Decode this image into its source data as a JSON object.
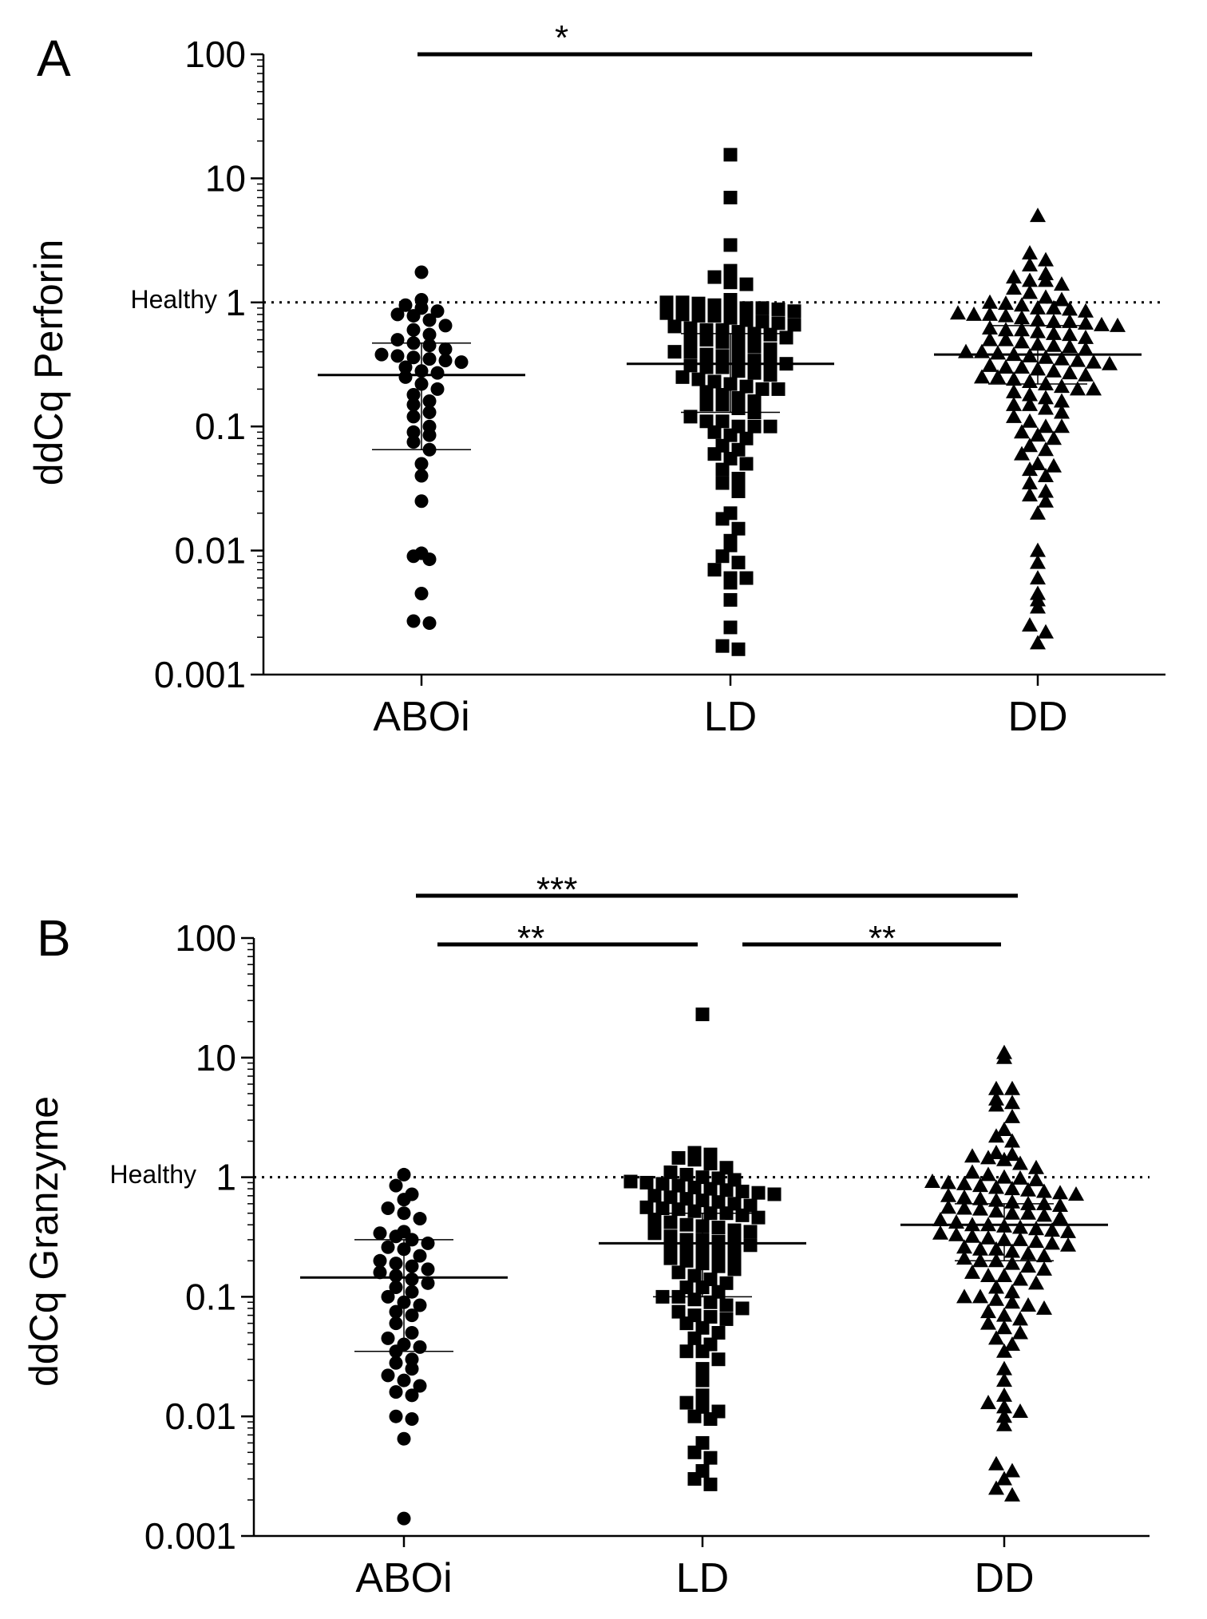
{
  "colors": {
    "ink": "#000000",
    "background": "#ffffff"
  },
  "chart_data": [
    {
      "type": "scatter",
      "panel": "A",
      "ylabel": "ddCq Perforin",
      "yscale": "log",
      "ylim": [
        0.001,
        100
      ],
      "yticks": [
        "0.001",
        "0.01",
        "0.1",
        "1",
        "10",
        "100"
      ],
      "categories": [
        "ABOi",
        "LD",
        "DD"
      ],
      "reference": {
        "label": "Healthy",
        "value": 1
      },
      "significance": [
        {
          "from": "ABOi",
          "to": "DD",
          "label": "*"
        }
      ],
      "series": [
        {
          "name": "ABOi",
          "marker": "circle",
          "median": 0.26,
          "iqr": [
            0.065,
            0.47
          ],
          "values": [
            1.75,
            1.05,
            0.95,
            0.9,
            0.85,
            0.8,
            0.78,
            0.72,
            0.65,
            0.6,
            0.55,
            0.5,
            0.47,
            0.45,
            0.42,
            0.38,
            0.37,
            0.36,
            0.35,
            0.34,
            0.33,
            0.3,
            0.28,
            0.27,
            0.25,
            0.22,
            0.2,
            0.18,
            0.16,
            0.15,
            0.13,
            0.12,
            0.1,
            0.09,
            0.085,
            0.075,
            0.065,
            0.05,
            0.04,
            0.025,
            0.0095,
            0.009,
            0.0085,
            0.0045,
            0.0027,
            0.0026
          ]
        },
        {
          "name": "LD",
          "marker": "square",
          "median": 0.32,
          "iqr": [
            0.13,
            0.56
          ],
          "values": [
            15.5,
            7,
            2.9,
            1.8,
            1.6,
            1.45,
            1.4,
            1.05,
            1.0,
            1.0,
            0.98,
            0.95,
            0.93,
            0.9,
            0.9,
            0.88,
            0.85,
            0.82,
            0.8,
            0.78,
            0.78,
            0.75,
            0.72,
            0.7,
            0.68,
            0.66,
            0.64,
            0.62,
            0.6,
            0.6,
            0.58,
            0.56,
            0.55,
            0.52,
            0.5,
            0.5,
            0.48,
            0.46,
            0.44,
            0.42,
            0.4,
            0.4,
            0.38,
            0.37,
            0.36,
            0.34,
            0.33,
            0.32,
            0.31,
            0.3,
            0.3,
            0.28,
            0.27,
            0.26,
            0.25,
            0.24,
            0.23,
            0.22,
            0.21,
            0.2,
            0.2,
            0.19,
            0.18,
            0.17,
            0.16,
            0.15,
            0.15,
            0.14,
            0.13,
            0.12,
            0.11,
            0.11,
            0.1,
            0.1,
            0.1,
            0.09,
            0.085,
            0.08,
            0.07,
            0.065,
            0.06,
            0.055,
            0.05,
            0.045,
            0.038,
            0.035,
            0.03,
            0.02,
            0.018,
            0.015,
            0.012,
            0.011,
            0.009,
            0.008,
            0.007,
            0.006,
            0.006,
            0.0055,
            0.004,
            0.0024,
            0.0017,
            0.0016
          ]
        },
        {
          "name": "DD",
          "marker": "triangle",
          "median": 0.38,
          "iqr": [
            0.22,
            0.65
          ],
          "values": [
            5,
            2.5,
            2.2,
            2.0,
            1.7,
            1.6,
            1.5,
            1.5,
            1.4,
            1.3,
            1.2,
            1.1,
            1.05,
            1.0,
            0.98,
            0.95,
            0.9,
            0.9,
            0.88,
            0.85,
            0.82,
            0.8,
            0.8,
            0.78,
            0.75,
            0.72,
            0.7,
            0.7,
            0.68,
            0.66,
            0.65,
            0.62,
            0.6,
            0.6,
            0.58,
            0.56,
            0.55,
            0.52,
            0.5,
            0.5,
            0.48,
            0.46,
            0.45,
            0.44,
            0.42,
            0.4,
            0.4,
            0.39,
            0.38,
            0.37,
            0.36,
            0.35,
            0.34,
            0.33,
            0.32,
            0.31,
            0.3,
            0.3,
            0.29,
            0.28,
            0.27,
            0.26,
            0.25,
            0.25,
            0.24,
            0.23,
            0.22,
            0.21,
            0.2,
            0.2,
            0.19,
            0.18,
            0.17,
            0.16,
            0.15,
            0.15,
            0.14,
            0.13,
            0.12,
            0.11,
            0.1,
            0.1,
            0.09,
            0.085,
            0.08,
            0.07,
            0.065,
            0.06,
            0.05,
            0.048,
            0.045,
            0.04,
            0.035,
            0.03,
            0.028,
            0.025,
            0.02,
            0.01,
            0.008,
            0.006,
            0.0045,
            0.004,
            0.0035,
            0.0025,
            0.0022,
            0.0018
          ]
        }
      ]
    },
    {
      "type": "scatter",
      "panel": "B",
      "ylabel": "ddCq Granzyme",
      "yscale": "log",
      "ylim": [
        0.001,
        100
      ],
      "yticks": [
        "0.001",
        "0.01",
        "0.1",
        "1",
        "10",
        "100"
      ],
      "categories": [
        "ABOi",
        "LD",
        "DD"
      ],
      "reference": {
        "label": "Healthy",
        "value": 1
      },
      "significance": [
        {
          "from": "ABOi",
          "to": "DD",
          "label": "***"
        },
        {
          "from": "ABOi",
          "to": "LD",
          "label": "**"
        },
        {
          "from": "LD",
          "to": "DD",
          "label": "**"
        }
      ],
      "series": [
        {
          "name": "ABOi",
          "marker": "circle",
          "median": 0.145,
          "iqr": [
            0.035,
            0.3
          ],
          "values": [
            1.05,
            0.85,
            0.72,
            0.65,
            0.55,
            0.5,
            0.45,
            0.35,
            0.34,
            0.32,
            0.3,
            0.28,
            0.26,
            0.25,
            0.22,
            0.2,
            0.19,
            0.18,
            0.17,
            0.16,
            0.15,
            0.14,
            0.13,
            0.12,
            0.11,
            0.1,
            0.09,
            0.085,
            0.075,
            0.07,
            0.06,
            0.05,
            0.045,
            0.04,
            0.038,
            0.035,
            0.03,
            0.028,
            0.025,
            0.022,
            0.02,
            0.018,
            0.016,
            0.015,
            0.01,
            0.0095,
            0.0065,
            0.0014
          ]
        },
        {
          "name": "LD",
          "marker": "square",
          "median": 0.28,
          "iqr": [
            0.1,
            0.5
          ],
          "values": [
            23,
            1.6,
            1.55,
            1.45,
            1.4,
            1.3,
            1.2,
            1.1,
            1.05,
            1.0,
            0.98,
            0.95,
            0.92,
            0.9,
            0.88,
            0.85,
            0.82,
            0.8,
            0.78,
            0.76,
            0.74,
            0.72,
            0.7,
            0.68,
            0.66,
            0.64,
            0.62,
            0.6,
            0.58,
            0.56,
            0.55,
            0.54,
            0.52,
            0.5,
            0.5,
            0.48,
            0.46,
            0.44,
            0.42,
            0.4,
            0.39,
            0.38,
            0.36,
            0.35,
            0.34,
            0.32,
            0.3,
            0.3,
            0.29,
            0.28,
            0.27,
            0.26,
            0.25,
            0.24,
            0.23,
            0.22,
            0.21,
            0.2,
            0.19,
            0.18,
            0.17,
            0.16,
            0.15,
            0.14,
            0.13,
            0.12,
            0.12,
            0.11,
            0.1,
            0.1,
            0.095,
            0.09,
            0.085,
            0.08,
            0.075,
            0.07,
            0.068,
            0.065,
            0.06,
            0.055,
            0.05,
            0.045,
            0.04,
            0.035,
            0.035,
            0.03,
            0.025,
            0.02,
            0.015,
            0.013,
            0.012,
            0.011,
            0.01,
            0.0095,
            0.006,
            0.005,
            0.0045,
            0.0035,
            0.003,
            0.0027
          ]
        },
        {
          "name": "DD",
          "marker": "triangle",
          "median": 0.4,
          "iqr": [
            0.2,
            0.6
          ],
          "values": [
            11,
            10,
            5.5,
            5.5,
            4.5,
            4.2,
            4.0,
            3.2,
            2.5,
            2.2,
            2.0,
            1.6,
            1.55,
            1.5,
            1.45,
            1.4,
            1.3,
            1.2,
            1.1,
            1.05,
            1.0,
            0.98,
            0.95,
            0.92,
            0.9,
            0.88,
            0.85,
            0.82,
            0.8,
            0.78,
            0.76,
            0.74,
            0.72,
            0.7,
            0.68,
            0.66,
            0.64,
            0.62,
            0.6,
            0.6,
            0.58,
            0.56,
            0.55,
            0.54,
            0.52,
            0.5,
            0.5,
            0.48,
            0.46,
            0.44,
            0.42,
            0.4,
            0.4,
            0.39,
            0.38,
            0.37,
            0.36,
            0.35,
            0.34,
            0.33,
            0.32,
            0.31,
            0.3,
            0.3,
            0.29,
            0.28,
            0.27,
            0.26,
            0.25,
            0.25,
            0.24,
            0.23,
            0.22,
            0.21,
            0.2,
            0.2,
            0.19,
            0.18,
            0.17,
            0.16,
            0.15,
            0.15,
            0.14,
            0.13,
            0.12,
            0.11,
            0.1,
            0.1,
            0.095,
            0.09,
            0.085,
            0.08,
            0.075,
            0.07,
            0.065,
            0.06,
            0.055,
            0.05,
            0.045,
            0.04,
            0.035,
            0.025,
            0.02,
            0.015,
            0.013,
            0.012,
            0.011,
            0.01,
            0.0085,
            0.004,
            0.0035,
            0.003,
            0.0025,
            0.0022
          ]
        }
      ]
    }
  ]
}
